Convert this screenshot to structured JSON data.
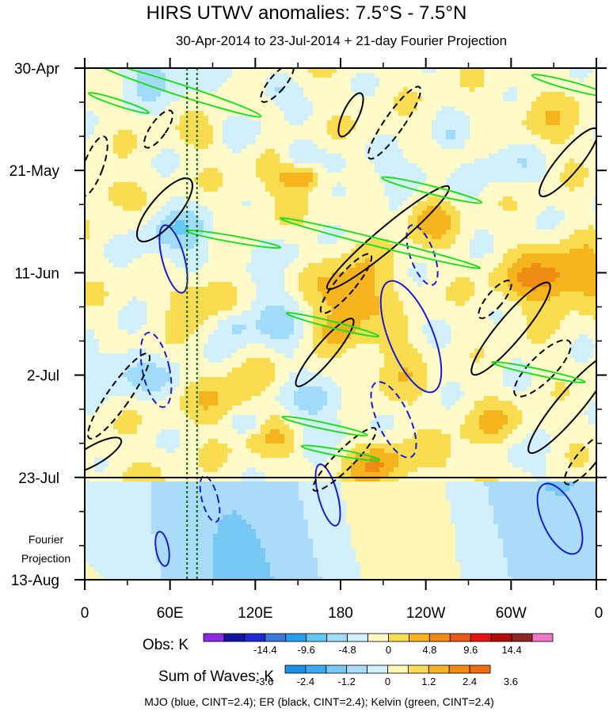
{
  "title": "HIRS UTWV anomalies: 7.5°S - 7.5°N",
  "subtitle": "30-Apr-2014 to 23-Jul-2014 + 21-day Fourier Projection",
  "projection_label_line1": "Fourier",
  "projection_label_line2": "Projection",
  "obs_label": "Obs: K",
  "sum_label": "Sum of Waves: K",
  "footer": "MJO (blue, CINT=2.4); ER (black, CINT=2.4); Kelvin (green, CINT=2.4)",
  "colors": {
    "mjo": "#1a1ad0",
    "er": "#000000",
    "kelvin": "#22dd22",
    "longitude_marker": "#006600"
  },
  "chart_data": {
    "type": "heatmap",
    "title": "HIRS UTWV anomalies: 7.5°S - 7.5°N",
    "subtitle": "30-Apr-2014 to 23-Jul-2014 + 21-day Fourier Projection",
    "x_axis": {
      "ticks": [
        "0",
        "60E",
        "120E",
        "180",
        "120W",
        "60W",
        "0"
      ],
      "longitudes_deg_east": [
        0,
        60,
        120,
        180,
        240,
        300,
        360
      ]
    },
    "y_axis": {
      "ticks": [
        "30-Apr",
        "21-May",
        "11-Jun",
        "2-Jul",
        "23-Jul",
        "13-Aug"
      ],
      "direction": "time increases downward",
      "minor_tick_interval_days": 7
    },
    "observation_end": "23-Jul",
    "projection_period": "23-Jul to 13-Aug (21-day Fourier Projection)",
    "reference_longitudes_deg_east": [
      72,
      79
    ],
    "obs_colorbar": {
      "label": "Obs: K",
      "tick_labels": [
        "-14.4",
        "-9.6",
        "-4.8",
        "0",
        "4.8",
        "9.6",
        "14.4"
      ],
      "colors": [
        "#8a2be2",
        "#1414a0",
        "#1e2ad2",
        "#3c78dc",
        "#28a0f0",
        "#64c8f5",
        "#a0dcfa",
        "#d2f0fc",
        "#fffac8",
        "#fadc50",
        "#f5b41e",
        "#f08c14",
        "#eb5a14",
        "#e61414",
        "#b40a0a",
        "#8c2828",
        "#f078c8"
      ]
    },
    "waves_colorbar": {
      "label": "Sum of Waves: K",
      "tick_labels": [
        "-3.6",
        "-2.4",
        "-1.2",
        "0",
        "1.2",
        "2.4",
        "3.6"
      ],
      "colors": [
        "#1e90e6",
        "#3caaf0",
        "#78c8f5",
        "#aadcfa",
        "#d2f0fc",
        "#fff5b4",
        "#fadc5a",
        "#f5b428",
        "#f08c14",
        "#eb6e14"
      ]
    },
    "contour_legend": [
      {
        "wave": "MJO",
        "color": "blue",
        "cint": 2.4
      },
      {
        "wave": "ER",
        "color": "black",
        "cint": 2.4
      },
      {
        "wave": "Kelvin",
        "color": "green",
        "cint": 2.4
      }
    ]
  }
}
